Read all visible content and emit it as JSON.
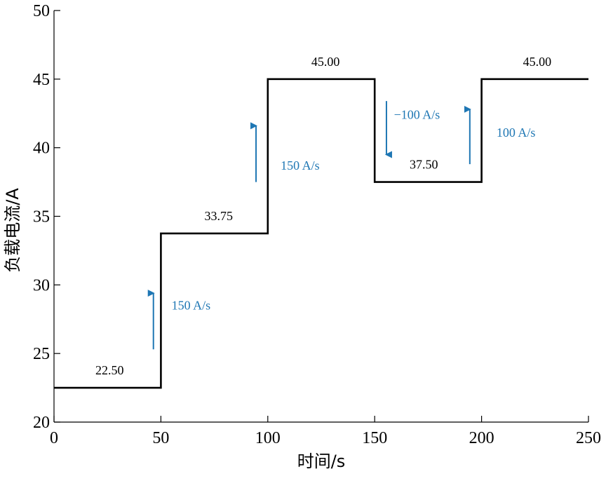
{
  "chart_data": {
    "type": "line",
    "step": true,
    "xlabel": "时间/s",
    "ylabel": "负载电流/A",
    "xlim": [
      0,
      250
    ],
    "ylim": [
      20,
      50
    ],
    "xticks": [
      0,
      50,
      100,
      150,
      200,
      250
    ],
    "yticks": [
      20,
      25,
      30,
      35,
      40,
      45,
      50
    ],
    "grid": false,
    "series": [
      {
        "color": "#000000",
        "x": [
          0,
          50,
          50,
          100,
          100,
          150,
          150,
          200,
          200,
          250
        ],
        "y": [
          22.5,
          22.5,
          33.75,
          33.75,
          45,
          45,
          37.5,
          37.5,
          45,
          45
        ]
      }
    ],
    "value_labels": [
      {
        "text": "22.50",
        "x": 26,
        "y": 22.5
      },
      {
        "text": "33.75",
        "x": 77,
        "y": 33.75
      },
      {
        "text": "45.00",
        "x": 127,
        "y": 45
      },
      {
        "text": "37.50",
        "x": 173,
        "y": 37.5
      },
      {
        "text": "45.00",
        "x": 226,
        "y": 45
      }
    ],
    "rate_annotations": [
      {
        "text": "150 A/s",
        "direction": "up",
        "arrow_x": 46.5,
        "y_from": 25.3,
        "y_to": 29.4,
        "label_x": 55,
        "label_y": 28.2
      },
      {
        "text": "150 A/s",
        "direction": "up",
        "arrow_x": 94.5,
        "y_from": 37.5,
        "y_to": 41.6,
        "label_x": 106,
        "label_y": 38.4
      },
      {
        "text": "−100 A/s",
        "direction": "down",
        "arrow_x": 155.5,
        "y_from": 43.4,
        "y_to": 39.5,
        "label_x": 159,
        "label_y": 42.1
      },
      {
        "text": "100 A/s",
        "direction": "up",
        "arrow_x": 194.5,
        "y_from": 38.8,
        "y_to": 42.8,
        "label_x": 207,
        "label_y": 40.8
      }
    ],
    "annotation_color": "#1f77b4"
  }
}
